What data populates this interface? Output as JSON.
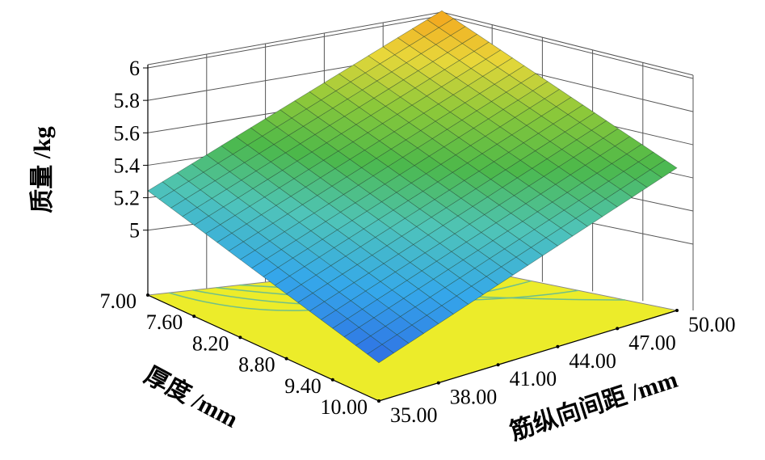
{
  "chart_data": {
    "type": "surface3d",
    "xlabel": "筋纵向间距 /mm",
    "ylabel": "厚度 /mm",
    "zlabel": "质量 /kg",
    "x_ticks": [
      "35.00",
      "38.00",
      "41.00",
      "44.00",
      "47.00",
      "50.00"
    ],
    "y_ticks": [
      "7.00",
      "7.60",
      "8.20",
      "8.80",
      "9.40",
      "10.00"
    ],
    "z_ticks": [
      "5",
      "5.2",
      "5.4",
      "5.6",
      "5.8",
      "6"
    ],
    "xlim": [
      35,
      50
    ],
    "ylim": [
      7,
      10
    ],
    "zlim": [
      5,
      6
    ],
    "surface_corners": [
      {
        "x": 35,
        "y": 7,
        "z": 5.2
      },
      {
        "x": 50,
        "y": 7,
        "z": 6.05
      },
      {
        "x": 50,
        "y": 10,
        "z": 5.42
      },
      {
        "x": 35,
        "y": 10,
        "z": 4.82
      }
    ],
    "grid": true,
    "colormap": [
      "#2f6fe3",
      "#35a8ea",
      "#4fc4b8",
      "#4cb84a",
      "#8cc83a",
      "#e8d73a",
      "#f4a21c"
    ],
    "contour_floor_color": "#ecec2a"
  }
}
